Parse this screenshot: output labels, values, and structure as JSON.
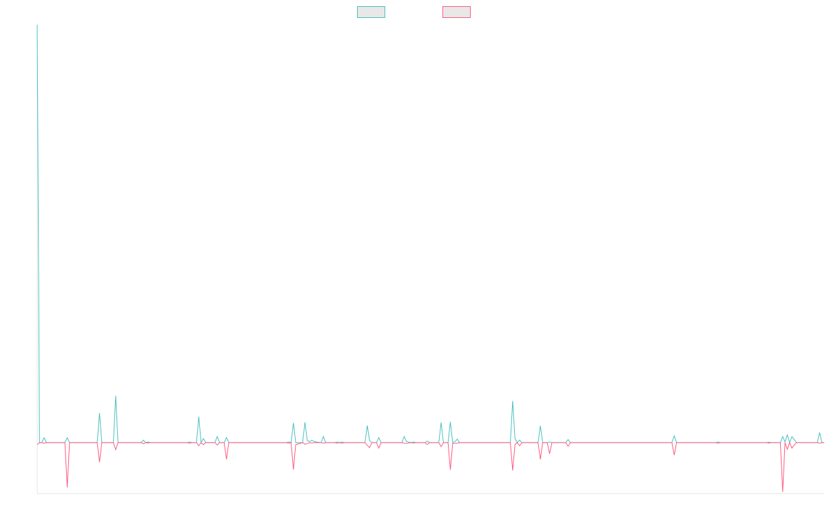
{
  "chart_data": {
    "type": "line",
    "title": "",
    "xlabel": "",
    "ylabel": "",
    "x_range": [
      0,
      341
    ],
    "ylim": [
      -25,
      205
    ],
    "grid": false,
    "legend_position": "top-center",
    "series": [
      {
        "name": "",
        "color": "#4bc0c0",
        "fill": "#e8e8e8",
        "points": [
          [
            0,
            205
          ],
          [
            1,
            0
          ],
          [
            2,
            0
          ],
          [
            3,
            2.4
          ],
          [
            4,
            0
          ],
          [
            12,
            0
          ],
          [
            13,
            2.4
          ],
          [
            14,
            0
          ],
          [
            26,
            0
          ],
          [
            27,
            14.5
          ],
          [
            28,
            0
          ],
          [
            33,
            0
          ],
          [
            34,
            23
          ],
          [
            35,
            0
          ],
          [
            45,
            0
          ],
          [
            46,
            1.2
          ],
          [
            47,
            0
          ],
          [
            48,
            0.3
          ],
          [
            49,
            0
          ],
          [
            65,
            0
          ],
          [
            66,
            0.3
          ],
          [
            67,
            0
          ],
          [
            69,
            0
          ],
          [
            70,
            12.8
          ],
          [
            71,
            0
          ],
          [
            72,
            2
          ],
          [
            73,
            0
          ],
          [
            77,
            0
          ],
          [
            78,
            3
          ],
          [
            79,
            0
          ],
          [
            81,
            0
          ],
          [
            82,
            2.5
          ],
          [
            83,
            0
          ],
          [
            108,
            0
          ],
          [
            109,
            0.3
          ],
          [
            110,
            0
          ],
          [
            111,
            9.7
          ],
          [
            112,
            0
          ],
          [
            115,
            0
          ],
          [
            116,
            10
          ],
          [
            117,
            1
          ],
          [
            118,
            0.5
          ],
          [
            119,
            1.2
          ],
          [
            120,
            0.5
          ],
          [
            123,
            0
          ],
          [
            124,
            3
          ],
          [
            125,
            0
          ],
          [
            129,
            0
          ],
          [
            130,
            0.3
          ],
          [
            131,
            0
          ],
          [
            132,
            0.3
          ],
          [
            133,
            0
          ],
          [
            142,
            0
          ],
          [
            143,
            8.4
          ],
          [
            144,
            1
          ],
          [
            145,
            0
          ],
          [
            147,
            0
          ],
          [
            148,
            2.5
          ],
          [
            149,
            0
          ],
          [
            158,
            0
          ],
          [
            159,
            3
          ],
          [
            160,
            0.5
          ],
          [
            161,
            0.3
          ],
          [
            162,
            0
          ],
          [
            163,
            0.3
          ],
          [
            164,
            0
          ],
          [
            168,
            0
          ],
          [
            169,
            0.8
          ],
          [
            170,
            0
          ],
          [
            174,
            0
          ],
          [
            175,
            9.9
          ],
          [
            176,
            0
          ],
          [
            178,
            0
          ],
          [
            179,
            10.2
          ],
          [
            180,
            0
          ],
          [
            181,
            0.5
          ],
          [
            182,
            1.7
          ],
          [
            183,
            0
          ],
          [
            205,
            0
          ],
          [
            206,
            20.5
          ],
          [
            207,
            2
          ],
          [
            208,
            0
          ],
          [
            209,
            1.2
          ],
          [
            210,
            0
          ],
          [
            217,
            0
          ],
          [
            218,
            8.3
          ],
          [
            219,
            0
          ],
          [
            221,
            0
          ],
          [
            222,
            0.3
          ],
          [
            223,
            0
          ],
          [
            229,
            0
          ],
          [
            230,
            1.5
          ],
          [
            231,
            0
          ],
          [
            275,
            0
          ],
          [
            276,
            3.3
          ],
          [
            277,
            0
          ],
          [
            294,
            0
          ],
          [
            295,
            0.3
          ],
          [
            296,
            0
          ],
          [
            316,
            0
          ],
          [
            317,
            0.2
          ],
          [
            318,
            0
          ],
          [
            322,
            0
          ],
          [
            323,
            3
          ],
          [
            324,
            0.3
          ],
          [
            325,
            3.8
          ],
          [
            326,
            0
          ],
          [
            327,
            3
          ],
          [
            328,
            1.5
          ],
          [
            329,
            0
          ],
          [
            338,
            0
          ],
          [
            339,
            5
          ],
          [
            340,
            0
          ],
          [
            341,
            0
          ]
        ]
      },
      {
        "name": "",
        "color": "#ff5a80",
        "fill": "#e8e8e8",
        "points": [
          [
            0,
            -1
          ],
          [
            1,
            0
          ],
          [
            2,
            0
          ],
          [
            3,
            -0.3
          ],
          [
            4,
            0
          ],
          [
            12,
            0
          ],
          [
            13,
            -22
          ],
          [
            14,
            0
          ],
          [
            26,
            0
          ],
          [
            27,
            -9.6
          ],
          [
            28,
            0
          ],
          [
            33,
            0
          ],
          [
            34,
            -3.5
          ],
          [
            35,
            0
          ],
          [
            45,
            0
          ],
          [
            46,
            -0.6
          ],
          [
            47,
            0
          ],
          [
            48,
            -0.2
          ],
          [
            49,
            0
          ],
          [
            65,
            0
          ],
          [
            66,
            -0.3
          ],
          [
            67,
            0
          ],
          [
            69,
            0
          ],
          [
            70,
            -1.5
          ],
          [
            71,
            0
          ],
          [
            72,
            -1
          ],
          [
            73,
            0
          ],
          [
            77,
            0
          ],
          [
            78,
            -1.2
          ],
          [
            79,
            0
          ],
          [
            81,
            0
          ],
          [
            82,
            -8.2
          ],
          [
            83,
            0
          ],
          [
            108,
            0
          ],
          [
            109,
            -0.3
          ],
          [
            110,
            0
          ],
          [
            111,
            -13.2
          ],
          [
            112,
            -1
          ],
          [
            115,
            0
          ],
          [
            116,
            -0.8
          ],
          [
            117,
            -0.5
          ],
          [
            118,
            0
          ],
          [
            119,
            -0.2
          ],
          [
            120,
            0
          ],
          [
            123,
            0
          ],
          [
            124,
            -0.3
          ],
          [
            125,
            0
          ],
          [
            129,
            0
          ],
          [
            130,
            -0.3
          ],
          [
            131,
            0
          ],
          [
            132,
            -0.3
          ],
          [
            133,
            0
          ],
          [
            142,
            0
          ],
          [
            143,
            -1.3
          ],
          [
            144,
            -2.5
          ],
          [
            145,
            0
          ],
          [
            147,
            0
          ],
          [
            148,
            -2.7
          ],
          [
            149,
            0
          ],
          [
            158,
            0
          ],
          [
            159,
            -0.3
          ],
          [
            160,
            -0.4
          ],
          [
            161,
            -0.2
          ],
          [
            162,
            0
          ],
          [
            163,
            -0.2
          ],
          [
            164,
            0
          ],
          [
            168,
            0
          ],
          [
            169,
            -0.9
          ],
          [
            170,
            0
          ],
          [
            174,
            0
          ],
          [
            175,
            -2
          ],
          [
            176,
            0
          ],
          [
            178,
            0
          ],
          [
            179,
            -13.3
          ],
          [
            180,
            -0.5
          ],
          [
            181,
            -0.3
          ],
          [
            182,
            -0.3
          ],
          [
            183,
            0
          ],
          [
            205,
            0
          ],
          [
            206,
            -13.7
          ],
          [
            207,
            -1
          ],
          [
            208,
            0
          ],
          [
            209,
            -1.6
          ],
          [
            210,
            0
          ],
          [
            217,
            0
          ],
          [
            218,
            -8.2
          ],
          [
            219,
            0
          ],
          [
            221,
            0
          ],
          [
            222,
            -5.5
          ],
          [
            223,
            0
          ],
          [
            229,
            0
          ],
          [
            230,
            -1.8
          ],
          [
            231,
            0
          ],
          [
            275,
            0
          ],
          [
            276,
            -6.1
          ],
          [
            277,
            0
          ],
          [
            294,
            0
          ],
          [
            295,
            -0.3
          ],
          [
            296,
            0
          ],
          [
            316,
            0
          ],
          [
            317,
            -0.2
          ],
          [
            318,
            0
          ],
          [
            322,
            0
          ],
          [
            323,
            -24.2
          ],
          [
            324,
            0
          ],
          [
            325,
            -3.3
          ],
          [
            326,
            0
          ],
          [
            327,
            -2.7
          ],
          [
            328,
            -1.2
          ],
          [
            329,
            0
          ],
          [
            338,
            0
          ],
          [
            339,
            -0.3
          ],
          [
            340,
            0
          ],
          [
            341,
            0
          ]
        ]
      }
    ]
  }
}
